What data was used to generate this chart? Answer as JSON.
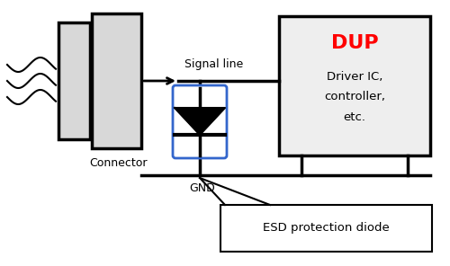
{
  "bg_color": "#ffffff",
  "line_color": "#000000",
  "blue_color": "#3366cc",
  "red_color": "#ff0000",
  "fig_width": 5.0,
  "fig_height": 2.96,
  "dpi": 100,
  "connector_label": "Connector",
  "signal_label": "Signal line",
  "gnd_label": "GND",
  "dup_title": "DUP",
  "dup_line1": "Driver IC,",
  "dup_line2": "controller,",
  "dup_line3": "etc.",
  "esd_label": "ESD protection diode"
}
